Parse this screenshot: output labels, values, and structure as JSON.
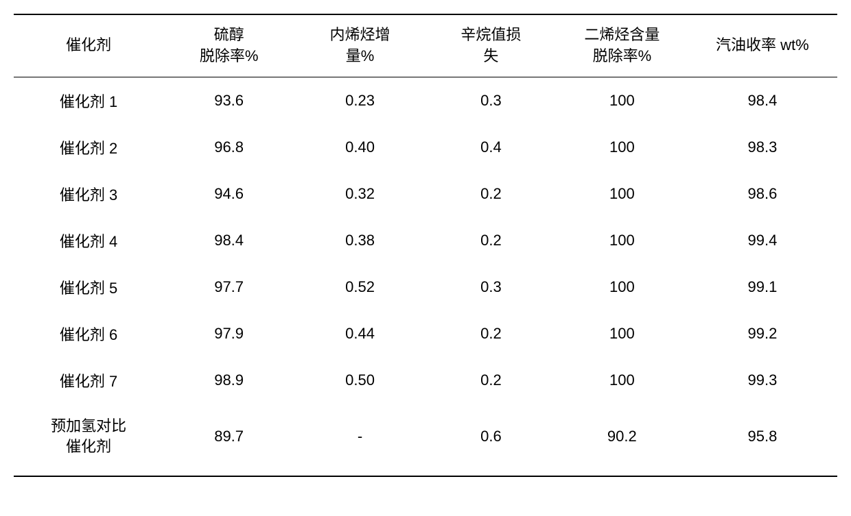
{
  "table": {
    "columns": [
      "催化剂",
      "硫醇\n脱除率%",
      "内烯烃增\n量%",
      "辛烷值损\n失",
      "二烯烃含量\n脱除率%",
      "汽油收率 wt%"
    ],
    "rows": [
      [
        "催化剂 1",
        "93.6",
        "0.23",
        "0.3",
        "100",
        "98.4"
      ],
      [
        "催化剂 2",
        "96.8",
        "0.40",
        "0.4",
        "100",
        "98.3"
      ],
      [
        "催化剂 3",
        "94.6",
        "0.32",
        "0.2",
        "100",
        "98.6"
      ],
      [
        "催化剂 4",
        "98.4",
        "0.38",
        "0.2",
        "100",
        "99.4"
      ],
      [
        "催化剂 5",
        "97.7",
        "0.52",
        "0.3",
        "100",
        "99.1"
      ],
      [
        "催化剂 6",
        "97.9",
        "0.44",
        "0.2",
        "100",
        "99.2"
      ],
      [
        "催化剂 7",
        "98.9",
        "0.50",
        "0.2",
        "100",
        "99.3"
      ],
      [
        "预加氢对比\n催化剂",
        "89.7",
        "-",
        "0.6",
        "90.2",
        "95.8"
      ]
    ],
    "column_widths": [
      "16%",
      "14%",
      "14%",
      "14%",
      "16%",
      "16%"
    ],
    "border_color": "#000000",
    "background_color": "#ffffff",
    "text_color": "#000000",
    "font_size": 22
  }
}
